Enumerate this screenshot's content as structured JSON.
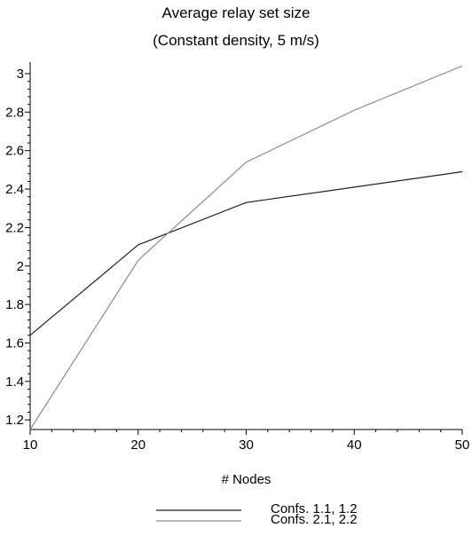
{
  "chart_data": {
    "type": "line",
    "title": "Average relay set size",
    "subtitle": "(Constant density, 5 m/s)",
    "xlabel": "# Nodes",
    "ylabel": "",
    "x": [
      10,
      20,
      30,
      40,
      50
    ],
    "xlim": [
      10,
      50
    ],
    "ylim": [
      1.15,
      3.06
    ],
    "x_ticks": [
      10,
      20,
      30,
      40,
      50
    ],
    "y_ticks": [
      1.2,
      1.4,
      1.6,
      1.8,
      2,
      2.2,
      2.4,
      2.6,
      2.8,
      3
    ],
    "grid": false,
    "legend_position": "bottom",
    "series": [
      {
        "name": "Confs. 1.1, 1.2",
        "color": "#222222",
        "values": [
          1.64,
          2.11,
          2.33,
          2.41,
          2.49
        ]
      },
      {
        "name": "Confs. 2.1, 2.2",
        "color": "#8c8c8c",
        "values": [
          1.15,
          2.03,
          2.54,
          2.81,
          3.04
        ]
      }
    ]
  }
}
